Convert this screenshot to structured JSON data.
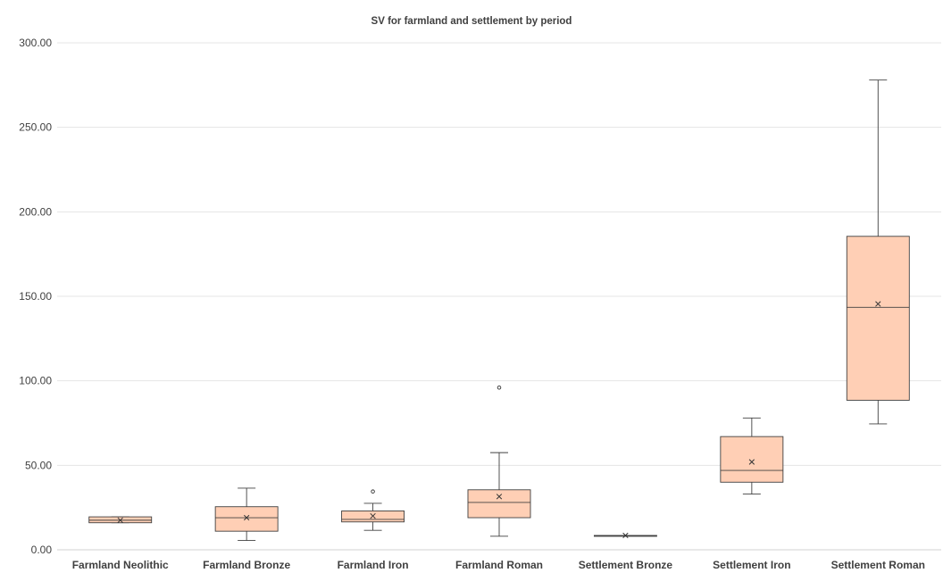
{
  "chart_data": {
    "type": "box",
    "title": "SV for farmland and settlement by period",
    "xlabel": "",
    "ylabel": "",
    "ylim": [
      0,
      300
    ],
    "yticks": [
      "0.00",
      "50.00",
      "100.00",
      "150.00",
      "200.00",
      "250.00",
      "300.00"
    ],
    "grid": true,
    "legend": "none",
    "box_fill": "#ffcfb5",
    "box_stroke": "#404040",
    "categories": [
      "Farmland Neolithic",
      "Farmland Bronze",
      "Farmland Iron",
      "Farmland Roman",
      "Settlement Bronze",
      "Settlement Iron",
      "Settlement Roman"
    ],
    "boxes": [
      {
        "category": "Farmland Neolithic",
        "min": 16,
        "q1": 16,
        "median": 17.5,
        "q3": 19.5,
        "max": 19.5,
        "mean": 17.5,
        "outliers": []
      },
      {
        "category": "Farmland Bronze",
        "min": 5.5,
        "q1": 11,
        "median": 19,
        "q3": 25.5,
        "max": 36.5,
        "mean": 19,
        "outliers": []
      },
      {
        "category": "Farmland Iron",
        "min": 11.5,
        "q1": 16.5,
        "median": 18,
        "q3": 23,
        "max": 27.5,
        "mean": 20,
        "outliers": [
          34.5
        ]
      },
      {
        "category": "Farmland Roman",
        "min": 8,
        "q1": 19,
        "median": 28,
        "q3": 35.5,
        "max": 57.5,
        "mean": 31.5,
        "outliers": [
          96
        ]
      },
      {
        "category": "Settlement Bronze",
        "min": 8.5,
        "q1": 8.5,
        "median": 8.5,
        "q3": 8.5,
        "max": 8.5,
        "mean": 8.5,
        "outliers": []
      },
      {
        "category": "Settlement Iron",
        "min": 33,
        "q1": 40,
        "median": 47,
        "q3": 67,
        "max": 78,
        "mean": 52,
        "outliers": []
      },
      {
        "category": "Settlement Roman",
        "min": 74.5,
        "q1": 88.5,
        "median": 143.5,
        "q3": 185.5,
        "max": 278,
        "mean": 145.5,
        "outliers": []
      }
    ]
  }
}
